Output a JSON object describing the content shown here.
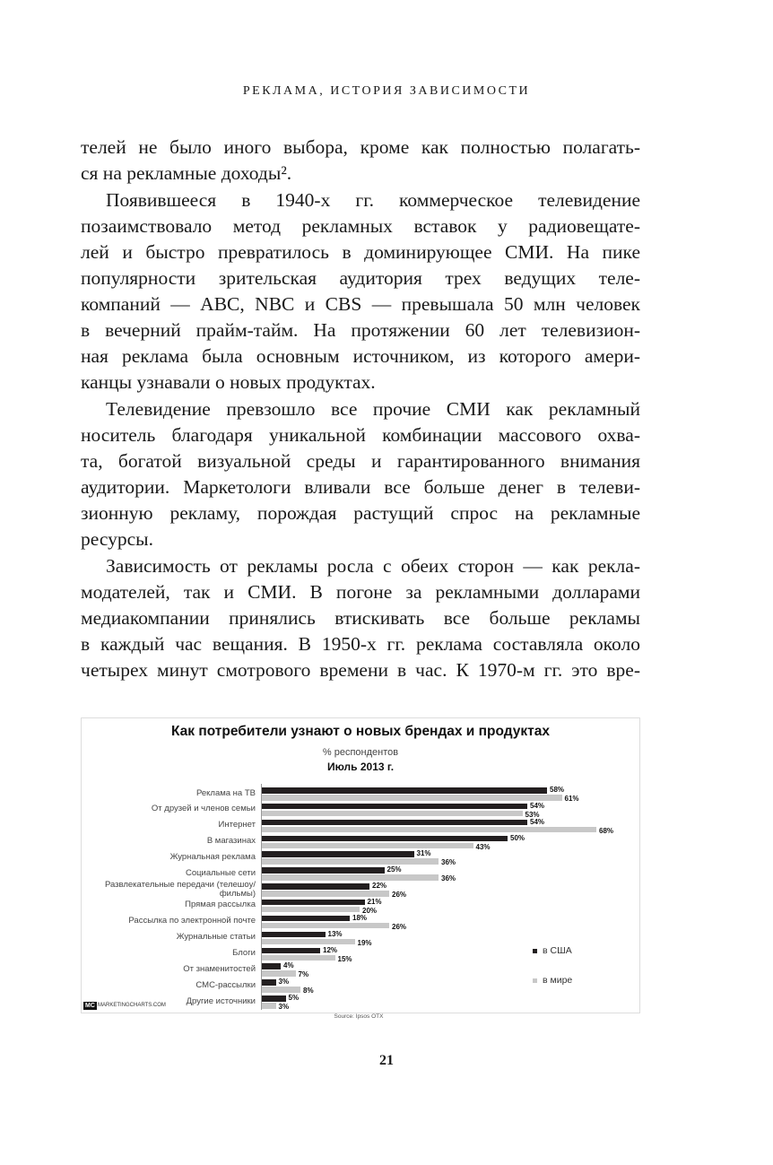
{
  "header": "РЕКЛАМА, ИСТОРИЯ ЗАВИСИМОСТИ",
  "paragraphs": [
    [
      "телей не было иного выбора, кроме как полностью полагать-",
      "ся на рекламные доходы²."
    ],
    [
      "Появившееся в 1940-х гг. коммерческое телевидение",
      "позаимствовало метод рекламных вставок у радиовещате-",
      "лей и быстро превратилось в доминирующее СМИ. На пике",
      "популярности зрительская аудитория трех ведущих теле-",
      "компаний — ABC, NBC и CBS — превышала 50 млн человек",
      "в вечерний прайм-тайм. На протяжении 60 лет телевизион-",
      "ная реклама была основным источником, из которого амери-",
      "канцы узнавали о новых продуктах."
    ],
    [
      "Телевидение превзошло все прочие СМИ как рекламный",
      "носитель благодаря уникальной комбинации массового охва-",
      "та, богатой визуальной среды и гарантированного внимания",
      "аудитории. Маркетологи вливали все больше денег в телеви-",
      "зионную рекламу, порождая растущий спрос на рекламные",
      "ресурсы."
    ],
    [
      "Зависимость от рекламы росла с обеих сторон — как рекла-",
      "модателей, так и СМИ. В погоне за рекламными долларами",
      "медиакомпании принялись втискивать все больше рекламы",
      "в каждый час вещания. В 1950-х гг. реклама составляла около",
      "четырех минут смотрового времени в час. К 1970-м гг. это вре-"
    ]
  ],
  "chart_data": {
    "type": "bar",
    "title": "Как потребители узнают о новых брендах и продуктах",
    "subtitle": "% респондентов",
    "date_label": "Июль 2013 г.",
    "categories": [
      "Реклама на ТВ",
      "От друзей и членов семьи",
      "Интернет",
      "В магазинах",
      "Журнальная реклама",
      "Социальные сети",
      "Развлекательные передачи (телешоу/фильмы)",
      "Прямая рассылка",
      "Рассылка по электронной почте",
      "Журнальные статьи",
      "Блоги",
      "От знаменитостей",
      "СМС-рассылки",
      "Другие источники"
    ],
    "series": [
      {
        "name": "в США",
        "color": "#231f20",
        "values": [
          58,
          54,
          54,
          50,
          31,
          25,
          22,
          21,
          18,
          13,
          12,
          4,
          3,
          5
        ],
        "value_labels": [
          "58%",
          "54%",
          "54%",
          "50%",
          "31%",
          "25%",
          "22%",
          "21%",
          "18%",
          "13%",
          "12%",
          "4%",
          "3%",
          "5%"
        ]
      },
      {
        "name": "в мире",
        "color": "#c8c8c8",
        "values": [
          61,
          53,
          68,
          43,
          36,
          36,
          26,
          20,
          26,
          19,
          15,
          7,
          8,
          3
        ],
        "value_labels": [
          "61%",
          "53%",
          "68%",
          "43%",
          "36%",
          "36%",
          "26%",
          "20%",
          "26%",
          "19%",
          "15%",
          "7%",
          "8%",
          "3%"
        ]
      }
    ],
    "source": "Source: Ipsos OTX",
    "logo": "MC",
    "site": "MARKETINGCHARTS.COM"
  },
  "page_number": "21"
}
